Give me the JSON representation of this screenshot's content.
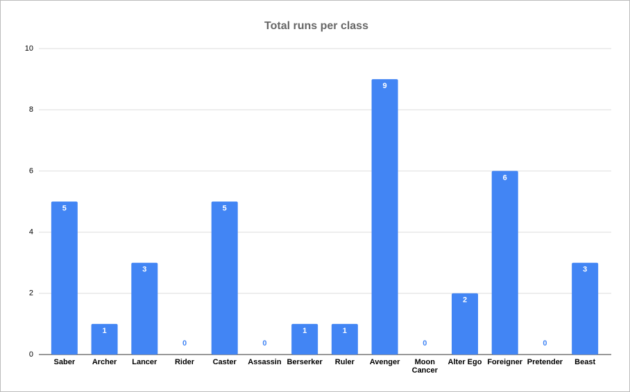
{
  "chart_data": {
    "type": "bar",
    "title": "Total runs per class",
    "categories": [
      "Saber",
      "Archer",
      "Lancer",
      "Rider",
      "Caster",
      "Assassin",
      "Berserker",
      "Ruler",
      "Avenger",
      "Moon Cancer",
      "Alter Ego",
      "Foreigner",
      "Pretender",
      "Beast"
    ],
    "values": [
      5,
      1,
      3,
      0,
      5,
      0,
      1,
      1,
      9,
      0,
      2,
      6,
      0,
      3
    ],
    "color": "#4285f4",
    "ylim": [
      0,
      10
    ],
    "yticks": [
      0,
      2,
      4,
      6,
      8,
      10
    ],
    "grid": true
  }
}
